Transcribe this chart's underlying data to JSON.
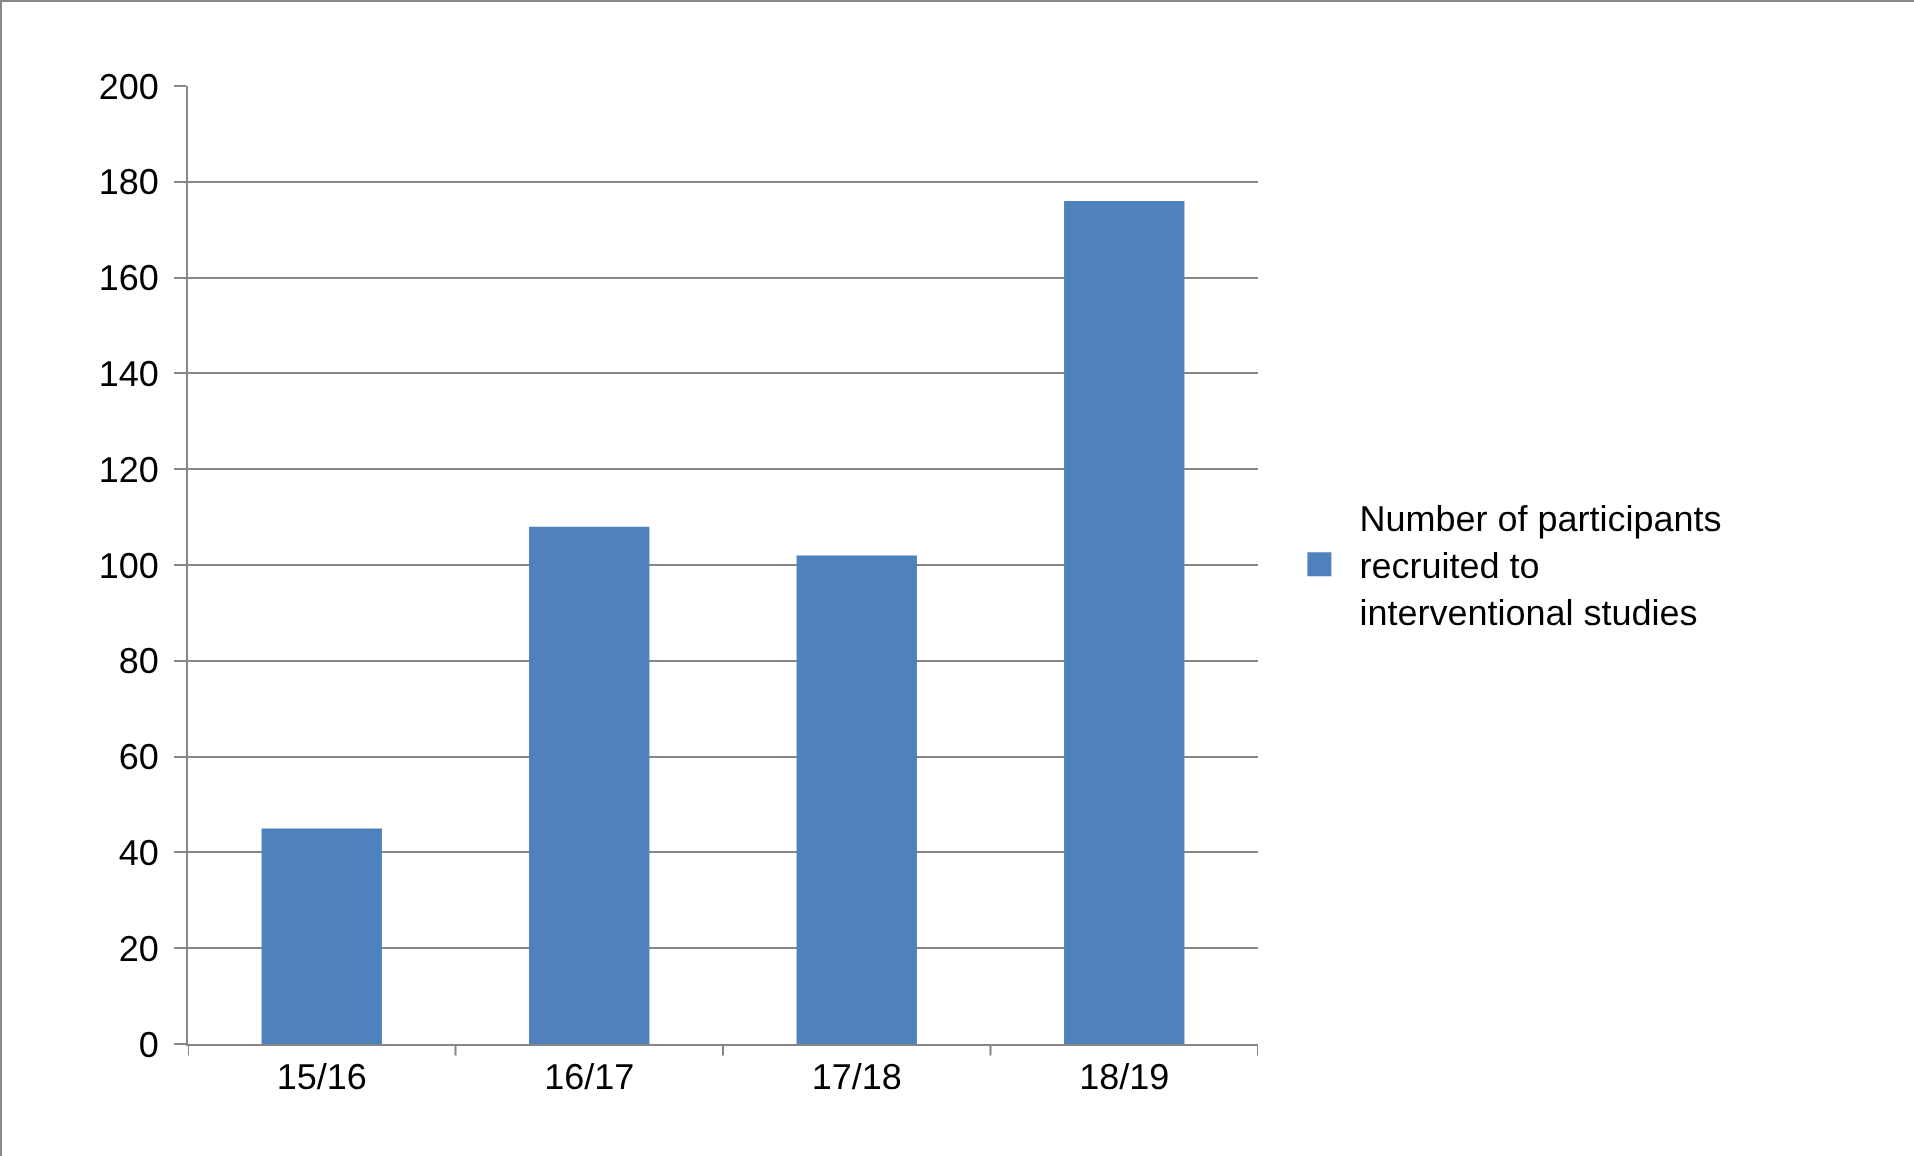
{
  "chart_data": {
    "type": "bar",
    "categories": [
      "15/16",
      "16/17",
      "17/18",
      "18/19"
    ],
    "series": [
      {
        "name": "Number of participants recruited to interventional studies",
        "color": "#4f81bd",
        "values": [
          45,
          108,
          102,
          176
        ]
      }
    ],
    "ylim": [
      0,
      200
    ],
    "yticks": [
      0,
      20,
      40,
      60,
      80,
      100,
      120,
      140,
      160,
      180,
      200
    ],
    "grid": "y",
    "legend": "right"
  }
}
